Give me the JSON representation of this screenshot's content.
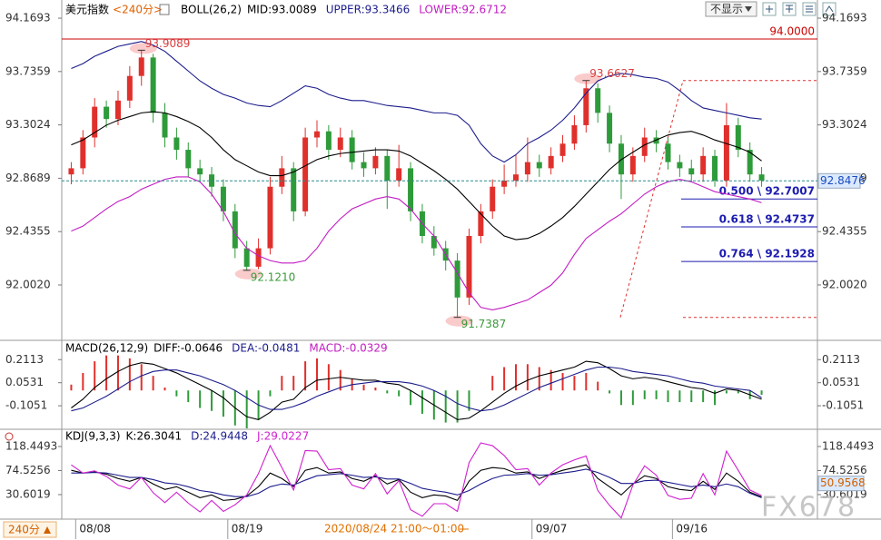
{
  "chart_data": [
    {
      "type": "candlestick",
      "title": "美元指数",
      "subtitle": "<240分>",
      "indicator": "BOLL(26,2)",
      "categories": [
        null,
        "08/08",
        null,
        null,
        null,
        null,
        null,
        null,
        null,
        null,
        null,
        null,
        null,
        null,
        "08/19",
        null,
        null,
        null,
        null,
        null,
        null,
        null,
        null,
        null,
        null,
        null,
        null,
        null,
        null,
        null,
        null,
        null,
        null,
        null,
        null,
        null,
        null,
        null,
        null,
        null,
        "09/07",
        null,
        null,
        null,
        null,
        null,
        null,
        null,
        null,
        null,
        null,
        null,
        "09/16",
        null,
        null,
        null,
        null,
        null,
        null,
        null
      ],
      "open": [
        92.9,
        92.95,
        93.2,
        93.45,
        93.35,
        93.5,
        93.7,
        93.85,
        93.4,
        93.2,
        93.1,
        92.95,
        92.9,
        92.8,
        92.6,
        92.3,
        92.15,
        92.3,
        92.8,
        92.95,
        92.6,
        93.2,
        93.25,
        93.1,
        93.2,
        93.0,
        92.95,
        93.05,
        92.85,
        92.95,
        92.6,
        92.4,
        92.3,
        92.2,
        91.9,
        92.4,
        92.6,
        92.8,
        92.85,
        92.9,
        93.0,
        92.95,
        93.05,
        93.15,
        93.3,
        93.6,
        93.4,
        93.15,
        92.9,
        93.05,
        93.2,
        93.15,
        93.0,
        92.95,
        92.9,
        93.05,
        92.85,
        93.3,
        93.1,
        92.9
      ],
      "high": [
        93.0,
        93.26,
        93.52,
        93.5,
        93.58,
        93.78,
        93.91,
        93.88,
        93.48,
        93.28,
        93.16,
        93.02,
        92.96,
        92.86,
        92.66,
        92.36,
        92.38,
        92.88,
        93.05,
        93.0,
        93.28,
        93.34,
        93.3,
        93.28,
        93.26,
        93.08,
        93.12,
        93.1,
        93.14,
        93.0,
        92.66,
        92.48,
        92.36,
        92.26,
        92.46,
        92.66,
        92.86,
        92.98,
        93.06,
        93.2,
        93.06,
        93.12,
        93.22,
        93.38,
        93.66,
        93.64,
        93.46,
        93.22,
        93.12,
        93.28,
        93.26,
        93.2,
        93.06,
        93.02,
        93.12,
        93.1,
        93.48,
        93.36,
        93.16,
        92.96
      ],
      "low": [
        92.82,
        92.9,
        93.12,
        93.28,
        93.3,
        93.44,
        93.62,
        93.32,
        93.12,
        93.02,
        92.88,
        92.84,
        92.72,
        92.52,
        92.22,
        92.12,
        92.13,
        92.25,
        92.74,
        92.52,
        92.56,
        93.12,
        93.02,
        93.04,
        92.94,
        92.88,
        92.9,
        92.62,
        92.8,
        92.52,
        92.34,
        92.24,
        92.12,
        91.74,
        91.84,
        92.34,
        92.54,
        92.74,
        92.8,
        92.84,
        92.88,
        92.9,
        93.0,
        93.1,
        93.24,
        93.32,
        93.08,
        92.7,
        92.84,
        93.0,
        93.08,
        92.94,
        92.88,
        92.84,
        92.84,
        92.8,
        92.8,
        93.04,
        92.84,
        92.8
      ],
      "close": [
        92.95,
        93.2,
        93.45,
        93.35,
        93.5,
        93.7,
        93.85,
        93.4,
        93.2,
        93.1,
        92.95,
        92.9,
        92.8,
        92.6,
        92.3,
        92.15,
        92.3,
        92.8,
        92.95,
        92.6,
        93.2,
        93.25,
        93.1,
        93.2,
        93.0,
        92.95,
        93.05,
        92.85,
        92.95,
        92.6,
        92.4,
        92.3,
        92.2,
        91.9,
        92.4,
        92.6,
        92.8,
        92.85,
        92.9,
        93.0,
        92.95,
        93.05,
        93.15,
        93.3,
        93.6,
        93.4,
        93.15,
        92.9,
        93.05,
        93.2,
        93.15,
        93.0,
        92.95,
        92.9,
        93.05,
        92.85,
        93.3,
        93.1,
        92.9,
        92.85
      ],
      "up_color": "#e0302c",
      "down_color": "#2e9b3a",
      "series": [
        {
          "name": "MID:93.0089",
          "color": "#000000",
          "values": [
            93.14,
            93.18,
            93.24,
            93.3,
            93.34,
            93.37,
            93.4,
            93.41,
            93.4,
            93.37,
            93.33,
            93.28,
            93.2,
            93.1,
            93.02,
            92.97,
            92.92,
            92.89,
            92.89,
            92.92,
            92.97,
            93.02,
            93.05,
            93.07,
            93.08,
            93.09,
            93.1,
            93.1,
            93.09,
            93.05,
            92.99,
            92.93,
            92.86,
            92.78,
            92.68,
            92.58,
            92.48,
            92.4,
            92.37,
            92.38,
            92.42,
            92.48,
            92.55,
            92.64,
            92.74,
            92.84,
            92.94,
            93.02,
            93.08,
            93.14,
            93.18,
            93.22,
            93.24,
            93.25,
            93.22,
            93.18,
            93.15,
            93.12,
            93.08,
            93.01
          ]
        },
        {
          "name": "UPPER:93.3466",
          "color": "#1c1c8c",
          "values": [
            93.76,
            93.8,
            93.86,
            93.9,
            93.94,
            93.96,
            93.98,
            93.95,
            93.9,
            93.82,
            93.74,
            93.66,
            93.6,
            93.55,
            93.52,
            93.48,
            93.46,
            93.45,
            93.5,
            93.56,
            93.62,
            93.6,
            93.55,
            93.52,
            93.5,
            93.5,
            93.48,
            93.46,
            93.45,
            93.44,
            93.42,
            93.4,
            93.4,
            93.38,
            93.3,
            93.15,
            93.05,
            93.0,
            93.06,
            93.15,
            93.2,
            93.26,
            93.34,
            93.44,
            93.56,
            93.66,
            93.7,
            93.72,
            93.71,
            93.69,
            93.68,
            93.65,
            93.58,
            93.5,
            93.44,
            93.42,
            93.4,
            93.38,
            93.36,
            93.35
          ]
        },
        {
          "name": "LOWER:92.6712",
          "color": "#c21cc2",
          "values": [
            92.44,
            92.48,
            92.55,
            92.62,
            92.68,
            92.72,
            92.78,
            92.82,
            92.86,
            92.88,
            92.88,
            92.84,
            92.74,
            92.6,
            92.42,
            92.3,
            92.24,
            92.2,
            92.18,
            92.18,
            92.2,
            92.3,
            92.44,
            92.54,
            92.62,
            92.66,
            92.7,
            92.72,
            92.7,
            92.62,
            92.5,
            92.4,
            92.25,
            92.1,
            91.94,
            91.82,
            91.8,
            91.82,
            91.85,
            91.88,
            91.94,
            92.0,
            92.1,
            92.25,
            92.38,
            92.45,
            92.52,
            92.58,
            92.66,
            92.74,
            92.8,
            92.84,
            92.86,
            92.84,
            92.8,
            92.76,
            92.74,
            92.72,
            92.7,
            92.67
          ]
        }
      ],
      "ylim": [
        91.589,
        94.258
      ],
      "yticks": [
        94.1693,
        93.7359,
        93.3024,
        92.8689,
        92.4355,
        {
          "value": 92.002,
          "label": "92.0020"
        }
      ],
      "reference_line": {
        "value": 94.0,
        "label": "94.0000",
        "color": "#cc0000"
      },
      "last_price": {
        "value": 92.8476,
        "label": "92.8476"
      },
      "annotations": [
        {
          "value": 93.9089,
          "label": "93.9089"
        },
        {
          "value": 92.121,
          "label": "92.1210"
        },
        {
          "value": 91.7387,
          "label": "91.7387"
        },
        {
          "value": 93.6627,
          "label": "93.6627"
        }
      ],
      "fibonacci": {
        "high": 93.6627,
        "low": 91.7387,
        "levels": [
          {
            "ratio": 0.5,
            "price": 92.7007,
            "label": "0.500 \\ 92.7007"
          },
          {
            "ratio": 0.618,
            "price": 92.4737,
            "label": "0.618 \\ 92.4737"
          },
          {
            "ratio": 0.764,
            "price": 92.1928,
            "label": "0.764 \\ 92.1928"
          }
        ]
      }
    },
    {
      "type": "macd",
      "title": "MACD(26,12,9)",
      "series": [
        {
          "name": "DIFF:-0.0646",
          "color": "#000000",
          "values": [
            -0.12,
            -0.06,
            0.02,
            0.08,
            0.13,
            0.17,
            0.19,
            0.18,
            0.15,
            0.12,
            0.08,
            0.04,
            0.0,
            -0.05,
            -0.12,
            -0.18,
            -0.2,
            -0.15,
            -0.08,
            -0.06,
            0.02,
            0.07,
            0.08,
            0.09,
            0.08,
            0.07,
            0.07,
            0.05,
            0.04,
            0.0,
            -0.05,
            -0.1,
            -0.15,
            -0.2,
            -0.19,
            -0.14,
            -0.08,
            -0.02,
            0.03,
            0.07,
            0.1,
            0.12,
            0.14,
            0.16,
            0.2,
            0.19,
            0.15,
            0.1,
            0.08,
            0.09,
            0.08,
            0.06,
            0.04,
            0.02,
            0.01,
            -0.02,
            0.01,
            0.0,
            -0.03,
            -0.06
          ]
        },
        {
          "name": "DEA:-0.0481",
          "color": "#1c1c8c",
          "values": [
            -0.14,
            -0.12,
            -0.08,
            -0.04,
            0.01,
            0.06,
            0.1,
            0.13,
            0.14,
            0.14,
            0.12,
            0.1,
            0.07,
            0.04,
            0.0,
            -0.05,
            -0.1,
            -0.13,
            -0.13,
            -0.11,
            -0.08,
            -0.04,
            -0.01,
            0.02,
            0.04,
            0.05,
            0.06,
            0.06,
            0.06,
            0.05,
            0.03,
            0.0,
            -0.04,
            -0.09,
            -0.12,
            -0.14,
            -0.13,
            -0.1,
            -0.06,
            -0.02,
            0.02,
            0.05,
            0.08,
            0.11,
            0.14,
            0.16,
            0.16,
            0.15,
            0.13,
            0.12,
            0.11,
            0.1,
            0.08,
            0.06,
            0.05,
            0.03,
            0.02,
            0.01,
            0.0,
            -0.05
          ]
        }
      ],
      "histogram": {
        "name": "MACD:-0.0329",
        "color": "#c21cc2",
        "up_color": "#e0302c",
        "down_color": "#2e9b3a",
        "values": [
          0.04,
          0.12,
          0.2,
          0.24,
          0.24,
          0.22,
          0.18,
          0.1,
          0.02,
          -0.04,
          -0.08,
          -0.12,
          -0.14,
          -0.18,
          -0.24,
          -0.26,
          -0.2,
          -0.04,
          0.1,
          0.1,
          0.2,
          0.22,
          0.18,
          0.14,
          0.08,
          0.04,
          0.02,
          -0.02,
          -0.04,
          -0.1,
          -0.16,
          -0.2,
          -0.22,
          -0.22,
          -0.14,
          0.0,
          0.1,
          0.16,
          0.18,
          0.18,
          0.16,
          0.14,
          0.12,
          0.1,
          0.12,
          0.06,
          -0.02,
          -0.1,
          -0.1,
          -0.06,
          -0.06,
          -0.08,
          -0.08,
          -0.08,
          -0.08,
          -0.1,
          -0.02,
          -0.02,
          -0.06,
          -0.03
        ]
      },
      "ylim": [
        -0.26,
        0.3
      ],
      "yticks": [
        0.2113,
        0.0531,
        -0.1051
      ]
    },
    {
      "type": "line",
      "title": "KDJ(9,3,3)",
      "series": [
        {
          "name": "K:26.3041",
          "color": "#000000",
          "values": [
            75,
            70,
            72,
            68,
            60,
            55,
            62,
            50,
            40,
            45,
            35,
            25,
            30,
            20,
            22,
            28,
            45,
            70,
            60,
            45,
            75,
            80,
            70,
            72,
            60,
            55,
            65,
            50,
            58,
            35,
            25,
            30,
            28,
            20,
            55,
            75,
            80,
            78,
            70,
            72,
            60,
            68,
            75,
            80,
            85,
            60,
            45,
            30,
            50,
            65,
            60,
            45,
            40,
            38,
            55,
            40,
            70,
            55,
            35,
            26.3
          ]
        },
        {
          "name": "D:24.9448",
          "color": "#1c1c8c",
          "values": [
            70,
            70,
            71,
            70,
            66,
            62,
            62,
            58,
            52,
            50,
            45,
            38,
            35,
            30,
            27,
            27,
            33,
            45,
            50,
            48,
            57,
            65,
            67,
            69,
            66,
            62,
            63,
            59,
            59,
            51,
            42,
            38,
            35,
            30,
            38,
            50,
            60,
            66,
            67,
            69,
            66,
            67,
            70,
            73,
            77,
            71,
            62,
            51,
            51,
            56,
            57,
            53,
            49,
            45,
            48,
            45,
            50,
            45,
            33,
            24.9
          ]
        },
        {
          "name": "J:29.0227",
          "color": "#d020d0",
          "values": [
            85,
            70,
            74,
            64,
            48,
            41,
            62,
            34,
            16,
            35,
            15,
            -1,
            20,
            0,
            12,
            30,
            69,
            120,
            80,
            39,
            111,
            110,
            76,
            78,
            48,
            41,
            69,
            32,
            56,
            3,
            -9,
            14,
            14,
            0,
            89,
            125,
            120,
            102,
            76,
            78,
            48,
            70,
            85,
            94,
            101,
            38,
            11,
            -12,
            48,
            83,
            66,
            29,
            22,
            24,
            69,
            30,
            110,
            75,
            39,
            29.0
          ]
        }
      ],
      "ylim": [
        -17.5,
        138.3
      ],
      "yticks": [
        118.4493,
        74.5256,
        30.6019
      ],
      "marker": {
        "value": 50.9568,
        "label": "50.9568"
      }
    }
  ],
  "ui": {
    "dropdown": "不显示",
    "period_button": "240分",
    "x_cursor_label": "2020/08/24 21:00～01:00",
    "watermark": "FX678"
  }
}
